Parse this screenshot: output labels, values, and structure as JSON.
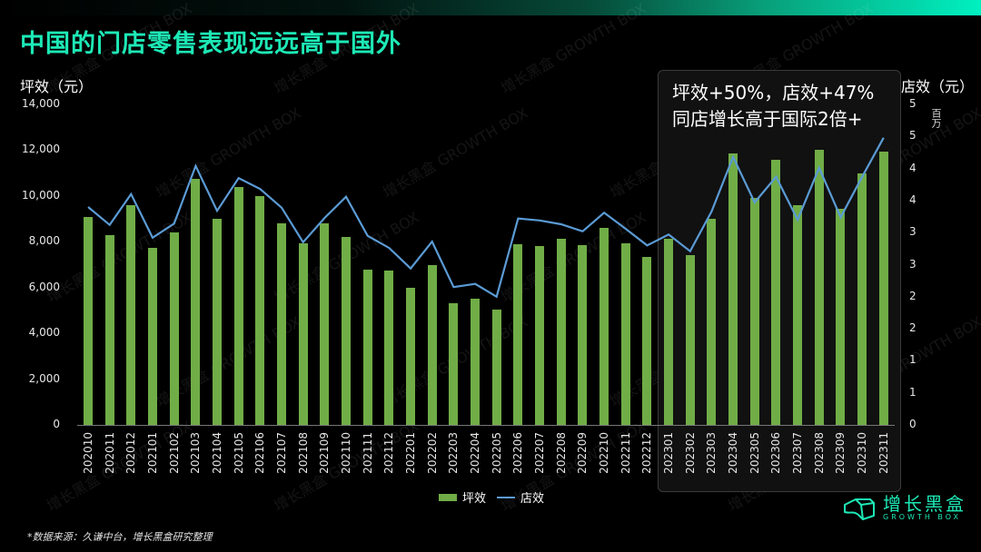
{
  "header": {
    "title": "中国的门店零售表现远远高于国外"
  },
  "axes": {
    "left_title": "坪效（元）",
    "right_title": "店效（元）",
    "right_unit": "百万",
    "left_ticks": [
      "14,000",
      "12,000",
      "10,000",
      "8,000",
      "6,000",
      "4,000",
      "2,000",
      "0"
    ],
    "right_ticks": [
      "5",
      "5",
      "4",
      "4",
      "3",
      "3",
      "2",
      "2",
      "1",
      "1",
      "0"
    ]
  },
  "callout": {
    "line1": "坪效+50%，店效+47%",
    "line2": "同店增长高于国际2倍+"
  },
  "legend": {
    "bar_label": "坪效",
    "line_label": "店效"
  },
  "footer": {
    "source": "*数据来源：久谦中台，增长黑盒研究整理",
    "logo_cn": "增长黑盒",
    "logo_en": "GROWTH BOX"
  },
  "watermark": {
    "cn": "增长黑盒",
    "en": "GROWTH BOX"
  },
  "colors": {
    "bar": "#70ad47",
    "line": "#5b9bd5",
    "title": "#1de9b6",
    "accent": "#00f0c0"
  },
  "chart_data": {
    "type": "bar+line",
    "title": "中国的门店零售表现远远高于国外",
    "xlabel": "",
    "ylabel": "坪效（元）",
    "ylabel_right": "店效（元）, 百万",
    "ylim": [
      0,
      14000
    ],
    "ylim_right": [
      0,
      5
    ],
    "grid": false,
    "legend_position": "bottom",
    "annotation": "坪效+50%，店效+47%；同店增长高于国际2倍+",
    "categories": [
      "202010",
      "202011",
      "202012",
      "202101",
      "202102",
      "202103",
      "202104",
      "202105",
      "202106",
      "202107",
      "202108",
      "202109",
      "202110",
      "202111",
      "202112",
      "202201",
      "202202",
      "202203",
      "202204",
      "202205",
      "202206",
      "202207",
      "202208",
      "202209",
      "202210",
      "202211",
      "202212",
      "202301",
      "202302",
      "202303",
      "202304",
      "202305",
      "202306",
      "202307",
      "202308",
      "202309",
      "202310",
      "202311"
    ],
    "series": [
      {
        "name": "坪效",
        "type": "bar",
        "axis": "left",
        "values": [
          9100,
          8300,
          9600,
          7750,
          8400,
          10750,
          9000,
          10400,
          10000,
          8800,
          7950,
          8800,
          8200,
          6800,
          6750,
          6000,
          7000,
          5300,
          5500,
          5050,
          7900,
          7800,
          8150,
          7850,
          8600,
          7950,
          7350,
          8150,
          7400,
          9000,
          11850,
          9900,
          11600,
          9600,
          12000,
          9450,
          11000,
          11950
        ]
      },
      {
        "name": "店效",
        "type": "line",
        "axis": "right",
        "unit": "百万元",
        "values": [
          3.4,
          3.12,
          3.6,
          2.92,
          3.14,
          4.04,
          3.34,
          3.85,
          3.68,
          3.39,
          2.85,
          3.23,
          3.56,
          2.95,
          2.76,
          2.44,
          2.86,
          2.15,
          2.2,
          2.0,
          3.22,
          3.19,
          3.13,
          3.02,
          3.31,
          3.06,
          2.8,
          2.97,
          2.71,
          3.33,
          4.18,
          3.47,
          3.87,
          3.2,
          4.01,
          3.24,
          3.87,
          4.48
        ]
      }
    ]
  }
}
